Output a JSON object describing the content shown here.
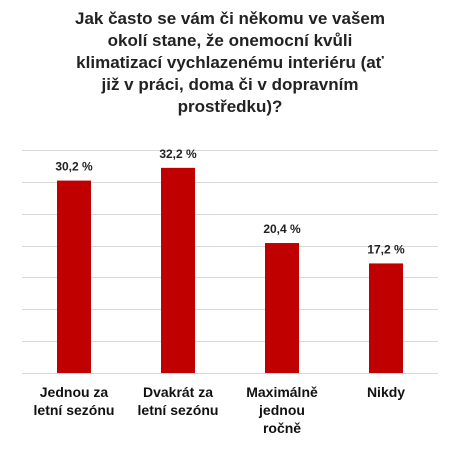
{
  "chart_data": {
    "type": "bar",
    "title": "Jak často se vám či někomu ve vašem\nokolí stane, že onemocní kvůli\nklimatizací vychlazenému interiéru (ať\njiž v práci, doma či v dopravním\nprostředku)?",
    "categories": [
      "Jednou za\nletní sezónu",
      "Dvakrát za\nletní sezónu",
      "Maximálně\njednou\nročně",
      "Nikdy"
    ],
    "values": [
      30.2,
      32.2,
      20.4,
      17.2
    ],
    "value_labels": [
      "30,2 %",
      "32,2 %",
      "20,4 %",
      "17,2 %"
    ],
    "color": "#c00000",
    "ylim": [
      0,
      35
    ],
    "yticks": [
      0,
      5,
      10,
      15,
      20,
      25,
      30,
      35
    ],
    "grid": true
  }
}
